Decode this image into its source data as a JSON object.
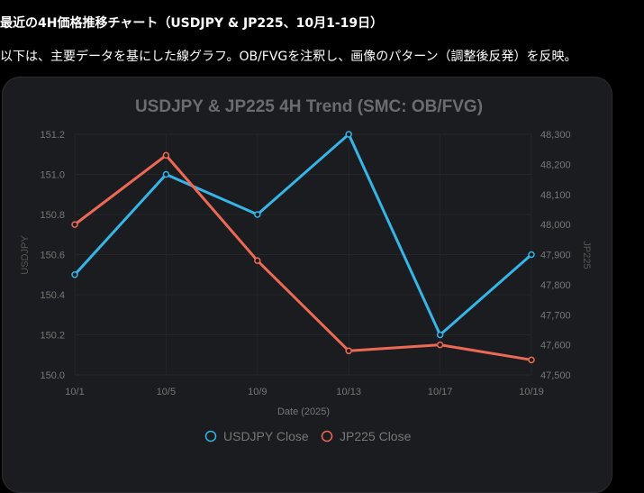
{
  "heading": "最近の4H価格推移チャート（USDJPY & JP225、10月1-19日）",
  "description": "以下は、主要データを基にした線グラフ。OB/FVGを注釈し、画像のパターン（調整後反発）を反映。",
  "chart_data": {
    "type": "line",
    "title": "USDJPY & JP225 4H Trend (SMC: OB/FVG)",
    "xlabel": "Date (2025)",
    "ylabel": "USDJPY",
    "y2label": "JP225",
    "categories": [
      "10/1",
      "10/5",
      "10/9",
      "10/13",
      "10/17",
      "10/19"
    ],
    "ylim": [
      150.0,
      151.2
    ],
    "y2lim": [
      47500,
      48300
    ],
    "yticks": [
      "150.0",
      "150.2",
      "150.4",
      "150.6",
      "150.8",
      "151.0",
      "151.2"
    ],
    "y2ticks": [
      "47,500",
      "47,600",
      "47,700",
      "47,800",
      "47,900",
      "48,000",
      "48,100",
      "48,200",
      "48,300"
    ],
    "grid": true,
    "legend": "bottom",
    "series": [
      {
        "name": "USDJPY Close",
        "axis": "left",
        "color": "#36b5e8",
        "values": [
          150.5,
          151.0,
          150.8,
          151.2,
          150.2,
          150.6
        ]
      },
      {
        "name": "JP225 Close",
        "axis": "right",
        "color": "#ec6a55",
        "values": [
          48000,
          48230,
          47880,
          47580,
          47600,
          47550
        ]
      }
    ]
  }
}
